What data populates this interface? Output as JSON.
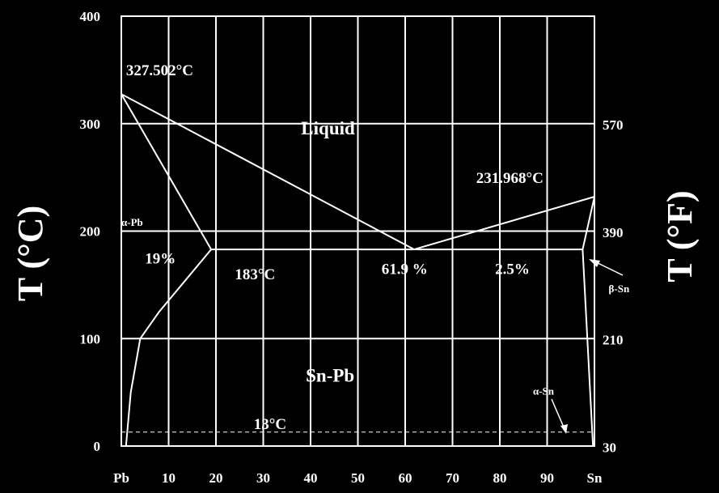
{
  "chart_data": {
    "type": "line",
    "xlabel": "",
    "ylabel_left": "T (°C)",
    "ylabel_right": "T (°F)",
    "xlim": [
      0,
      100
    ],
    "ylim": [
      0,
      400
    ],
    "x_ticks": [
      {
        "value": 0,
        "label": "Pb"
      },
      {
        "value": 10,
        "label": "10"
      },
      {
        "value": 20,
        "label": "20"
      },
      {
        "value": 30,
        "label": "30"
      },
      {
        "value": 40,
        "label": "40"
      },
      {
        "value": 50,
        "label": "50"
      },
      {
        "value": 60,
        "label": "60"
      },
      {
        "value": 70,
        "label": "70"
      },
      {
        "value": 80,
        "label": "80"
      },
      {
        "value": 90,
        "label": "90"
      },
      {
        "value": 100,
        "label": "Sn"
      }
    ],
    "y_ticks_left": [
      {
        "value": 0,
        "label": "0"
      },
      {
        "value": 100,
        "label": "100"
      },
      {
        "value": 200,
        "label": "200"
      },
      {
        "value": 300,
        "label": "300"
      },
      {
        "value": 400,
        "label": "400"
      }
    ],
    "y_ticks_right": [
      {
        "value": -1,
        "label": "30"
      },
      {
        "value": 99,
        "label": "210"
      },
      {
        "value": 199,
        "label": "390"
      },
      {
        "value": 299,
        "label": "570"
      }
    ],
    "grid": true,
    "series": [
      {
        "id": "liquidus-left",
        "points": [
          [
            0,
            327.5
          ],
          [
            61.9,
            183
          ]
        ]
      },
      {
        "id": "liquidus-right",
        "points": [
          [
            61.9,
            183
          ],
          [
            100,
            232
          ]
        ]
      },
      {
        "id": "solidus-pb",
        "points": [
          [
            0,
            327.5
          ],
          [
            19,
            183
          ]
        ]
      },
      {
        "id": "solvus-pb",
        "points": [
          [
            19,
            183
          ],
          [
            8,
            125
          ],
          [
            4,
            100
          ],
          [
            2,
            50
          ],
          [
            1,
            0
          ]
        ]
      },
      {
        "id": "eutectic-line",
        "points": [
          [
            19,
            183
          ],
          [
            97.5,
            183
          ]
        ]
      },
      {
        "id": "solidus-sn",
        "points": [
          [
            100,
            232
          ],
          [
            97.5,
            183
          ]
        ]
      },
      {
        "id": "solvus-sn",
        "points": [
          [
            97.5,
            183
          ],
          [
            99.7,
            0
          ]
        ]
      },
      {
        "id": "alpha-sn-line",
        "points": [
          [
            0,
            13
          ],
          [
            100,
            13
          ]
        ],
        "dashed": true
      }
    ],
    "annotations": [
      {
        "id": "pb-melting",
        "text": "327.502°C",
        "x": 1,
        "y": 345
      },
      {
        "id": "liquid",
        "text": "Liquid",
        "x": 38,
        "y": 290
      },
      {
        "id": "sn-melting",
        "text": "231.968°C",
        "x": 75,
        "y": 245
      },
      {
        "id": "alpha-pb",
        "text": "α-Pb",
        "x": 0,
        "y": 205
      },
      {
        "id": "pct-19",
        "text": "19%",
        "x": 5,
        "y": 170
      },
      {
        "id": "eutectic-temp",
        "text": "183°C",
        "x": 24,
        "y": 155
      },
      {
        "id": "eutectic-comp",
        "text": "61.9 %",
        "x": 55,
        "y": 160
      },
      {
        "id": "pct-2-5",
        "text": "2.5%",
        "x": 79,
        "y": 160
      },
      {
        "id": "sn-pb",
        "text": "Sn-Pb",
        "x": 39,
        "y": 60
      },
      {
        "id": "temp-13",
        "text": "13°C",
        "x": 28,
        "y": 16
      },
      {
        "id": "beta-sn",
        "text": "β-Sn",
        "x": 103,
        "y": 143
      },
      {
        "id": "alpha-sn",
        "text": "α-Sn",
        "x": 87,
        "y": 48
      }
    ]
  }
}
